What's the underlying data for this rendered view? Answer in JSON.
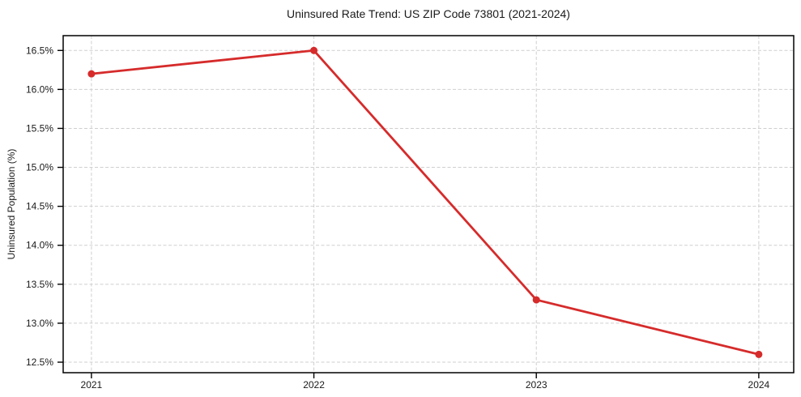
{
  "figure": {
    "background": "#ffffff"
  },
  "chart_data": {
    "type": "line",
    "title": "Uninsured Rate Trend: US ZIP Code 73801 (2021-2024)",
    "xlabel": "",
    "ylabel": "Uninsured Population (%)",
    "categories": [
      2021,
      2022,
      2023,
      2024
    ],
    "series": [
      {
        "name": "uninsured-rate",
        "values": [
          16.2,
          16.5,
          13.3,
          12.6
        ]
      }
    ],
    "x_ticks": [
      {
        "label": "2021",
        "value": 2021
      },
      {
        "label": "2022",
        "value": 2022
      },
      {
        "label": "2023",
        "value": 2023
      },
      {
        "label": "2024",
        "value": 2024
      }
    ],
    "y_ticks": [
      {
        "label": "12.5%",
        "value": 12.5
      },
      {
        "label": "13.0%",
        "value": 13.0
      },
      {
        "label": "13.5%",
        "value": 13.5
      },
      {
        "label": "14.0%",
        "value": 14.0
      },
      {
        "label": "14.5%",
        "value": 14.5
      },
      {
        "label": "15.0%",
        "value": 15.0
      },
      {
        "label": "15.5%",
        "value": 15.5
      },
      {
        "label": "16.0%",
        "value": 16.0
      },
      {
        "label": "16.5%",
        "value": 16.5
      }
    ],
    "xlim": [
      2020.873,
      2024.157
    ],
    "ylim": [
      12.365,
      16.69
    ],
    "grid": true,
    "grid_style": "dashed",
    "legend": "none",
    "marker": "circle",
    "colors": {
      "line": "#d62b2b",
      "marker": "#d62b2b",
      "grid": "#cfcfcf",
      "spine": "#000000",
      "text": "#1a1a1a"
    }
  }
}
